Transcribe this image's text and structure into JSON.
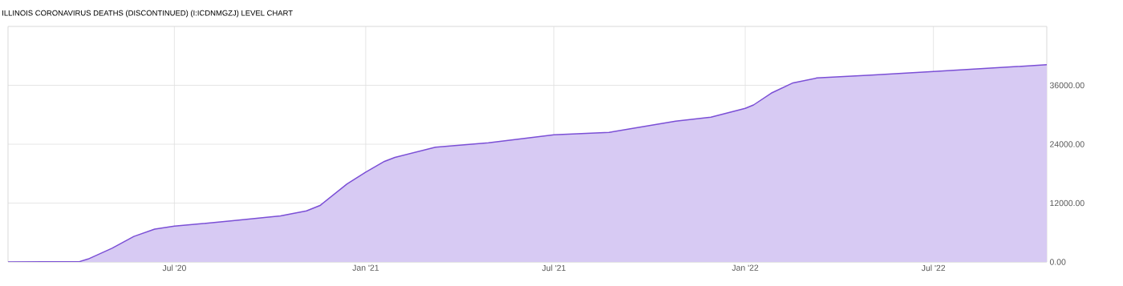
{
  "chart_data": {
    "type": "area",
    "title": "ILLINOIS CORONAVIRUS DEATHS (DISCONTINUED) (I:ICDNMGZJ) LEVEL CHART",
    "x": [
      "2020-01-23",
      "2020-04-01",
      "2020-04-09",
      "2020-05-02",
      "2020-05-23",
      "2020-06-12",
      "2020-07-01",
      "2020-08-26",
      "2020-10-11",
      "2020-11-05",
      "2020-11-18",
      "2020-12-14",
      "2021-01-01",
      "2021-01-19",
      "2021-01-29",
      "2021-03-09",
      "2021-04-29",
      "2021-07-01",
      "2021-08-23",
      "2021-09-17",
      "2021-10-26",
      "2021-11-29",
      "2022-01-01",
      "2022-01-09",
      "2022-01-26",
      "2022-02-16",
      "2022-03-11",
      "2022-05-02",
      "2022-07-01",
      "2022-10-18"
    ],
    "series": [
      {
        "color": "#7b4fd6",
        "values": [
          0,
          100,
          600,
          2800,
          5200,
          6700,
          7300,
          8400,
          9400,
          10400,
          11500,
          15900,
          18300,
          20500,
          21300,
          23400,
          24300,
          25900,
          26400,
          27300,
          28700,
          29500,
          31300,
          32000,
          34400,
          36500,
          37500,
          38100,
          38800,
          40200
        ]
      }
    ],
    "xlim": [
      "2020-01-23",
      "2022-10-18"
    ],
    "xticks": [
      {
        "value": "2020-07-01",
        "label": "Jul '20"
      },
      {
        "value": "2021-01-01",
        "label": "Jan '21"
      },
      {
        "value": "2021-07-01",
        "label": "Jul '21"
      },
      {
        "value": "2022-01-01",
        "label": "Jan '22"
      },
      {
        "value": "2022-07-01",
        "label": "Jul '22"
      }
    ],
    "ylim": [
      0,
      48000
    ],
    "yticks": [
      {
        "value": 0,
        "label": "0.00"
      },
      {
        "value": 12000,
        "label": "12000.00"
      },
      {
        "value": 24000,
        "label": "24000.00"
      },
      {
        "value": 36000,
        "label": "36000.00"
      }
    ],
    "grid": true
  }
}
